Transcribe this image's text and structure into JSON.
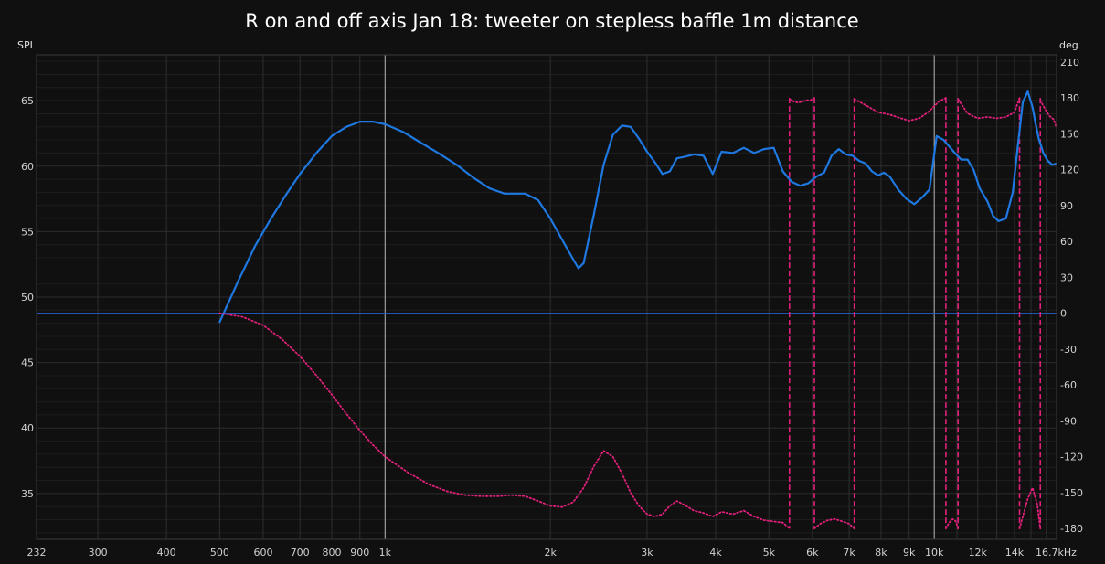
{
  "chart_data": {
    "type": "line",
    "title": "R on and off axis Jan 18: tweeter on stepless baffle 1m distance",
    "y_left_label": "SPL",
    "y_right_label": "deg",
    "x_unit_label": "16.7kHz",
    "x_scale": "log",
    "xlim": [
      232,
      16700
    ],
    "ylim_left": [
      31.5,
      68.5
    ],
    "ylim_right": [
      -189,
      216
    ],
    "grid": true,
    "x_tick_labels": [
      {
        "v": 232,
        "t": "232"
      },
      {
        "v": 300,
        "t": "300"
      },
      {
        "v": 400,
        "t": "400"
      },
      {
        "v": 500,
        "t": "500"
      },
      {
        "v": 600,
        "t": "600"
      },
      {
        "v": 700,
        "t": "700"
      },
      {
        "v": 800,
        "t": "800"
      },
      {
        "v": 900,
        "t": "900"
      },
      {
        "v": 1000,
        "t": "1k"
      },
      {
        "v": 2000,
        "t": "2k"
      },
      {
        "v": 3000,
        "t": "3k"
      },
      {
        "v": 4000,
        "t": "4k"
      },
      {
        "v": 5000,
        "t": "5k"
      },
      {
        "v": 6000,
        "t": "6k"
      },
      {
        "v": 7000,
        "t": "7k"
      },
      {
        "v": 8000,
        "t": "8k"
      },
      {
        "v": 9000,
        "t": "9k"
      },
      {
        "v": 10000,
        "t": "10k"
      },
      {
        "v": 12000,
        "t": "12k"
      },
      {
        "v": 14000,
        "t": "14k"
      }
    ],
    "y_left_ticks": [
      35,
      40,
      45,
      50,
      55,
      60,
      65
    ],
    "y_right_ticks": [
      -180,
      -150,
      -120,
      -90,
      -60,
      -30,
      0,
      30,
      60,
      90,
      120,
      150,
      180,
      210
    ],
    "reference_line_deg": 0,
    "colors": {
      "background": "#101010",
      "grid": "#2e2e2e",
      "grid_major": "#b8b8b8",
      "spl": "#1e78e0",
      "phase": "#e0207a",
      "reference": "#2a5fd0"
    },
    "series": [
      {
        "axis": "left",
        "style": "solid",
        "x": [
          500,
          540,
          580,
          620,
          660,
          700,
          750,
          800,
          850,
          900,
          950,
          1000,
          1080,
          1150,
          1250,
          1350,
          1450,
          1550,
          1650,
          1800,
          1900,
          2000,
          2100,
          2200,
          2250,
          2300,
          2400,
          2500,
          2600,
          2700,
          2800,
          2900,
          3000,
          3100,
          3200,
          3300,
          3400,
          3500,
          3650,
          3800,
          3950,
          4100,
          4300,
          4500,
          4700,
          4900,
          5100,
          5300,
          5500,
          5700,
          5900,
          6100,
          6300,
          6500,
          6700,
          6900,
          7100,
          7300,
          7500,
          7700,
          7900,
          8100,
          8300,
          8600,
          8900,
          9200,
          9500,
          9800,
          10100,
          10400,
          10700,
          10900,
          11200,
          11500,
          11800,
          12100,
          12500,
          12800,
          13100,
          13500,
          13900,
          14200,
          14500,
          14800,
          15100,
          15300,
          15500,
          15800,
          16100,
          16400,
          16700
        ],
        "y": [
          48.1,
          51.2,
          53.9,
          56.0,
          57.8,
          59.4,
          61.0,
          62.3,
          63.0,
          63.4,
          63.4,
          63.2,
          62.6,
          61.9,
          61.0,
          60.1,
          59.1,
          58.3,
          57.9,
          57.9,
          57.4,
          56.0,
          54.4,
          52.9,
          52.2,
          52.6,
          56.3,
          60.1,
          62.4,
          63.1,
          63.0,
          62.1,
          61.1,
          60.3,
          59.4,
          59.6,
          60.6,
          60.7,
          60.9,
          60.8,
          59.4,
          61.1,
          61.0,
          61.4,
          61.0,
          61.3,
          61.4,
          59.6,
          58.8,
          58.5,
          58.7,
          59.2,
          59.5,
          60.8,
          61.3,
          60.9,
          60.8,
          60.4,
          60.2,
          59.6,
          59.3,
          59.5,
          59.2,
          58.2,
          57.5,
          57.1,
          57.6,
          58.2,
          62.3,
          62.0,
          61.4,
          61.0,
          60.5,
          60.5,
          59.7,
          58.3,
          57.3,
          56.2,
          55.8,
          56.0,
          58.0,
          61.6,
          64.9,
          65.7,
          64.5,
          63.2,
          62.1,
          61.0,
          60.4,
          60.1,
          60.2
        ]
      },
      {
        "axis": "right",
        "style": "dotted",
        "x": [
          500,
          550,
          600,
          650,
          700,
          750,
          800,
          850,
          900,
          950,
          1000,
          1100,
          1200,
          1300,
          1400,
          1500,
          1600,
          1700,
          1800,
          1900,
          2000,
          2100,
          2200,
          2300,
          2400,
          2500,
          2600,
          2700,
          2800,
          2900,
          3000,
          3100,
          3200,
          3300,
          3400,
          3500,
          3650,
          3800,
          3950,
          4100,
          4300,
          4500,
          4700,
          4900,
          5100,
          5300,
          5450
        ],
        "y": [
          0,
          -3,
          -10,
          -22,
          -36,
          -52,
          -68,
          -84,
          -98,
          -110,
          -120,
          -133,
          -143,
          -149,
          -152,
          -153,
          -153,
          -152,
          -153,
          -157,
          -161,
          -162,
          -158,
          -146,
          -128,
          -115,
          -120,
          -134,
          -150,
          -161,
          -168,
          -170,
          -168,
          -161,
          -157,
          -160,
          -165,
          -167,
          -170,
          -166,
          -168,
          -165,
          -170,
          -173,
          -174,
          -175,
          -180
        ]
      },
      {
        "axis": "right",
        "style": "dotted",
        "x": [
          5450,
          5550,
          5650,
          5750,
          5850,
          5950,
          6050
        ],
        "y": [
          179,
          177,
          176,
          177,
          178,
          178,
          180
        ]
      },
      {
        "axis": "right",
        "style": "dotted",
        "x": [
          6050,
          6200,
          6400,
          6600,
          6800,
          7000,
          7150
        ],
        "y": [
          -180,
          -176,
          -173,
          -172,
          -174,
          -176,
          -180
        ]
      },
      {
        "axis": "right",
        "style": "dotted",
        "x": [
          7150,
          7500,
          7900,
          8300,
          8700,
          9000,
          9400,
          9800,
          10200,
          10500
        ],
        "y": [
          179,
          174,
          168,
          166,
          163,
          161,
          163,
          169,
          177,
          180
        ]
      },
      {
        "axis": "right",
        "style": "dotted",
        "x": [
          10500,
          10650,
          10800,
          10950,
          11050
        ],
        "y": [
          -180,
          -175,
          -172,
          -174,
          -180
        ]
      },
      {
        "axis": "right",
        "style": "dotted",
        "x": [
          11050,
          11500,
          12000,
          12500,
          13000,
          13500,
          14000,
          14300
        ],
        "y": [
          179,
          167,
          163,
          164,
          163,
          164,
          168,
          180
        ]
      },
      {
        "axis": "right",
        "style": "dotted",
        "x": [
          14300,
          14500,
          14800,
          15100,
          15400,
          15600
        ],
        "y": [
          -180,
          -170,
          -155,
          -146,
          -160,
          -180
        ]
      },
      {
        "axis": "right",
        "style": "dotted",
        "x": [
          15600,
          15900,
          16200,
          16500,
          16700
        ],
        "y": [
          178,
          171,
          165,
          162,
          155
        ]
      }
    ],
    "phase_wraps": [
      5450,
      6050,
      7150,
      10500,
      11050,
      14300,
      15600
    ]
  }
}
